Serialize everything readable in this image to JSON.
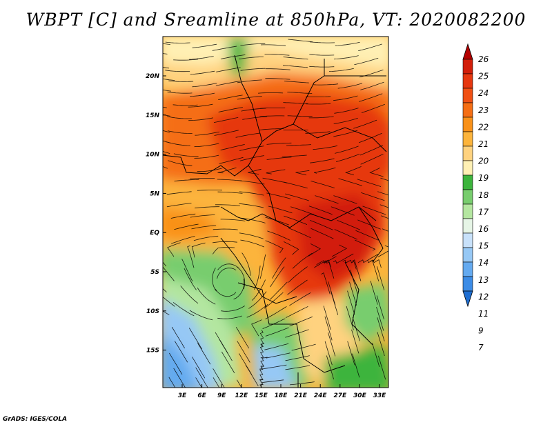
{
  "title": "WBPT [C] and Sreamline at 850hPa, VT: 2020082200",
  "footer": "GrADS: IGES/COLA",
  "lat_labels": [
    "20N",
    "15N",
    "10N",
    "5N",
    "EQ",
    "5S",
    "10S",
    "15S"
  ],
  "lon_labels": [
    "3E",
    "6E",
    "9E",
    "12E",
    "15E",
    "18E",
    "21E",
    "24E",
    "27E",
    "30E",
    "33E"
  ],
  "colorbar": {
    "labels": [
      "26",
      "25",
      "24",
      "23",
      "22",
      "21",
      "20",
      "19",
      "18",
      "17",
      "16",
      "15",
      "14",
      "13",
      "12",
      "11",
      "9",
      "7"
    ],
    "colors": [
      "#b40000",
      "#d21e0a",
      "#e6370f",
      "#f05014",
      "#f56e14",
      "#f99119",
      "#fcb43c",
      "#ffd27f",
      "#fff0b4",
      "#3cb43c",
      "#78cd6e",
      "#b4e6a0",
      "#e6f5e6",
      "#c8e1fa",
      "#96c8f5",
      "#64aaf0",
      "#3c8ce6",
      "#1e6ed2"
    ]
  },
  "legend": {
    "high_color": "#b40000",
    "low_color": "#1e6ed2"
  }
}
